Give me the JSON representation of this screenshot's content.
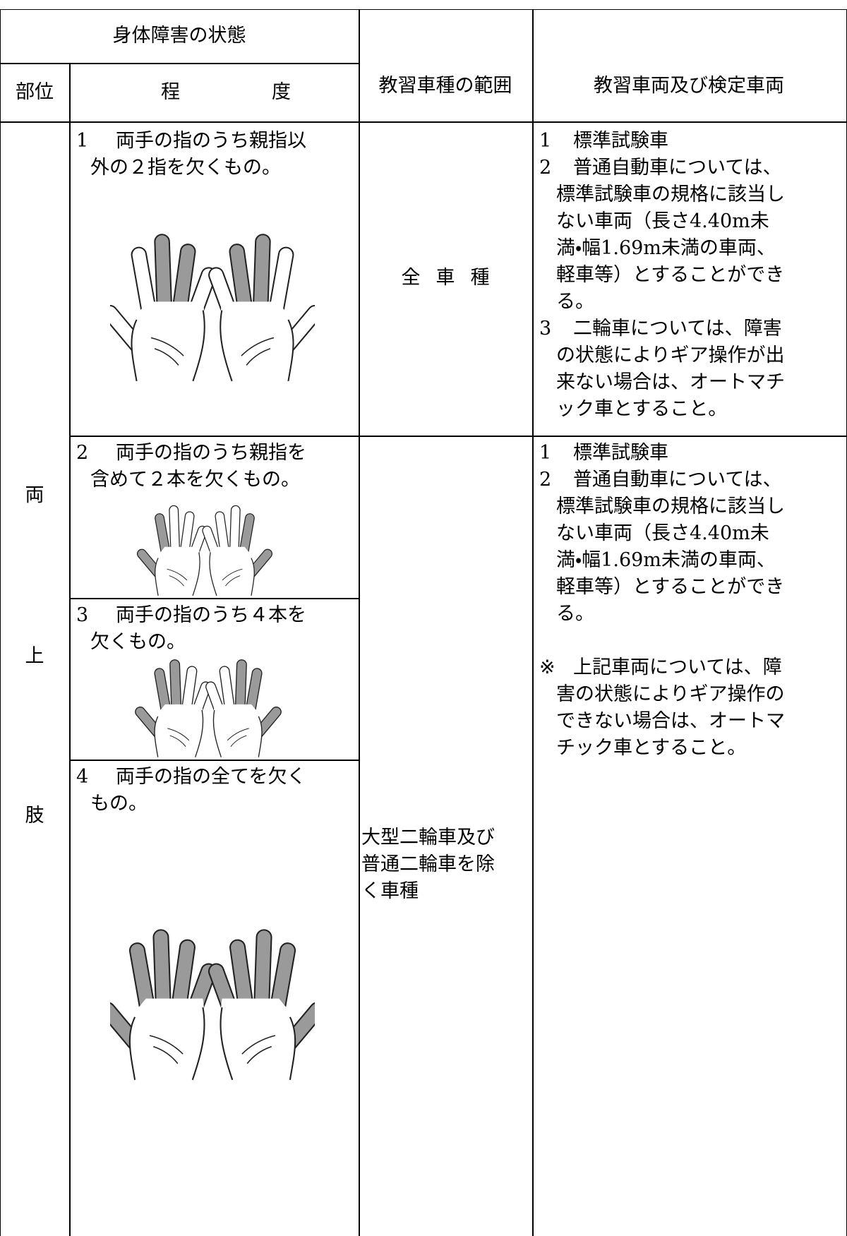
{
  "header": {
    "condition": "身体障害の状態",
    "part": "部位",
    "degree": "程度",
    "vehicle_range": "教習車種の範囲",
    "vehicles": "教習車両及び検定車両"
  },
  "body_part": [
    "両",
    "上",
    "肢"
  ],
  "rows": [
    {
      "number": "1",
      "lines": [
        "両手の指のうち親指以",
        "外の２指を欠くもの。"
      ]
    },
    {
      "number": "2",
      "lines": [
        "両手の指のうち親指を",
        "含めて２本を欠くもの。"
      ]
    },
    {
      "number": "3",
      "lines": [
        "両手の指のうち４本を",
        "欠くもの。"
      ]
    },
    {
      "number": "4",
      "lines": [
        "両手の指の全てを欠く",
        "もの。"
      ]
    }
  ],
  "vehicle_range": [
    {
      "lines": [
        "全車種"
      ]
    },
    {
      "lines": [
        "大型二輪車及び",
        "普通二輪車を除",
        "く車種"
      ]
    }
  ],
  "vehicles": [
    {
      "items": [
        {
          "mark": "1",
          "lines": [
            "標準試験車"
          ]
        },
        {
          "mark": "2",
          "lines": [
            "普通自動車については、",
            "標準試験車の規格に該当し",
            "ない車両（長さ4.40m未",
            "満・幅1.69m未満の車両、",
            "軽車等）とすることができ",
            "る。"
          ]
        },
        {
          "mark": "3",
          "lines": [
            "二輪車については、障害",
            "の状態によりギア操作が出",
            "来ない場合は、オートマチ",
            "ック車とすること。"
          ]
        }
      ]
    },
    {
      "items": [
        {
          "mark": "1",
          "lines": [
            "標準試験車"
          ]
        },
        {
          "mark": "2",
          "lines": [
            "普通自動車については、",
            "標準試験車の規格に該当し",
            "ない車両（長さ4.40m未",
            "満・幅1.69m未満の車両、",
            "軽車等）とすることができ",
            "る。"
          ]
        },
        {
          "mark": "※",
          "lines": [
            "上記車両については、障",
            "害の状態によりギア操作の",
            "できない場合は、オートマ",
            "チック車とすること。"
          ]
        }
      ]
    }
  ]
}
